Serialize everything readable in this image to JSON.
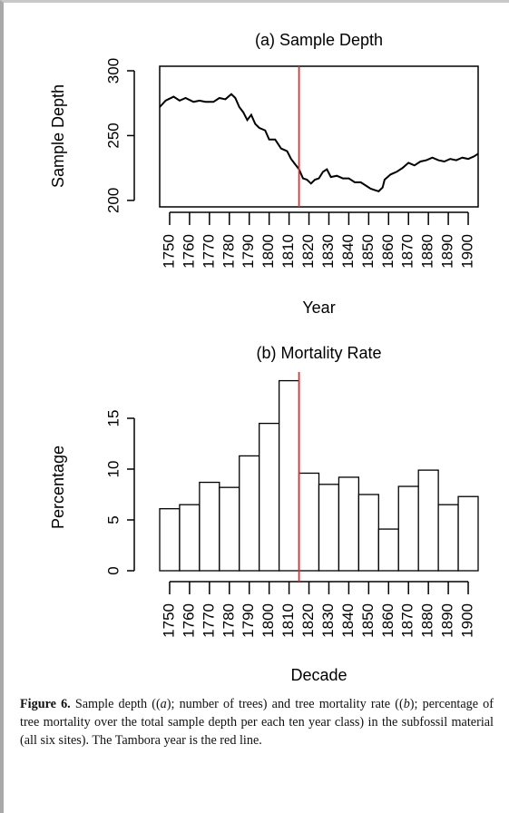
{
  "chart_data": [
    {
      "type": "line",
      "title": "(a) Sample Depth",
      "ylabel": "Sample Depth",
      "xlabel": "Year",
      "x": [
        1745,
        1748,
        1752,
        1755,
        1758,
        1762,
        1765,
        1768,
        1772,
        1775,
        1778,
        1781,
        1783,
        1785,
        1787,
        1789,
        1791,
        1793,
        1795,
        1798,
        1800,
        1803,
        1806,
        1809,
        1811,
        1813,
        1815,
        1817,
        1819,
        1821,
        1823,
        1825,
        1827,
        1829,
        1831,
        1834,
        1837,
        1840,
        1843,
        1846,
        1849,
        1851,
        1853,
        1855,
        1857,
        1858,
        1861,
        1864,
        1867,
        1870,
        1873,
        1876,
        1879,
        1882,
        1885,
        1888,
        1891,
        1894,
        1897,
        1900,
        1903,
        1905
      ],
      "values": [
        272,
        277,
        280,
        277,
        279,
        276,
        277,
        276,
        276,
        279,
        278,
        282,
        279,
        272,
        268,
        262,
        266,
        259,
        256,
        254,
        247,
        247,
        240,
        238,
        232,
        228,
        224,
        217,
        216,
        213,
        216,
        217,
        222,
        224,
        218,
        219,
        217,
        217,
        214,
        214,
        211,
        209,
        208,
        207,
        210,
        216,
        220,
        222,
        225,
        229,
        227,
        230,
        231,
        233,
        231,
        230,
        232,
        231,
        233,
        232,
        234,
        236
      ],
      "color": "#000000",
      "xlim": [
        1745,
        1905
      ],
      "xticks": [
        1750,
        1760,
        1770,
        1780,
        1790,
        1800,
        1810,
        1820,
        1830,
        1840,
        1850,
        1860,
        1870,
        1880,
        1890,
        1900
      ],
      "ylim": [
        195,
        303.5
      ],
      "yticks": [
        200,
        250,
        300
      ],
      "box": true,
      "vline": 1815,
      "vline_color": "#e03030"
    },
    {
      "type": "histogram",
      "title": "(b) Mortality Rate",
      "ylabel": "Percentage",
      "xlabel": "Decade",
      "bins": [
        1745,
        1755,
        1765,
        1775,
        1785,
        1795,
        1805,
        1815,
        1825,
        1835,
        1845,
        1855,
        1865,
        1875,
        1885,
        1895,
        1905
      ],
      "values": [
        6.1,
        6.5,
        8.7,
        8.2,
        11.3,
        14.5,
        18.7,
        9.6,
        8.5,
        9.2,
        7.5,
        4.1,
        8.3,
        9.9,
        6.5,
        7.3
      ],
      "color": "#ffffff",
      "xlim": [
        1745,
        1905
      ],
      "xticks": [
        1750,
        1760,
        1770,
        1780,
        1790,
        1800,
        1810,
        1820,
        1830,
        1840,
        1850,
        1860,
        1870,
        1880,
        1890,
        1900
      ],
      "ylim": [
        0,
        20
      ],
      "yticks": [
        0,
        5,
        10,
        15
      ],
      "box": false,
      "vline": 1815,
      "vline_color": "#e03030"
    }
  ],
  "caption": {
    "label": "Figure 6.",
    "parts": [
      " Sample depth ((",
      "a",
      "); number of trees) and tree mortality rate ((",
      "b",
      "); percentage of tree mortality over the total sample depth per each ten year class) in the subfossil material (all six sites). The Tambora year is the red line."
    ]
  }
}
